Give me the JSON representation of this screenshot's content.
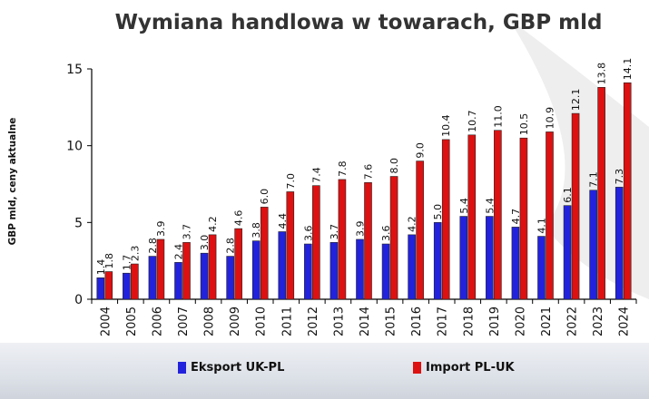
{
  "chart_data": {
    "type": "bar",
    "title": "Wymiana handlowa w towarach, GBP mld",
    "xlabel": "",
    "ylabel": "GBP mld, ceny aktualne",
    "categories": [
      "2004",
      "2005",
      "2006",
      "2007",
      "2008",
      "2009",
      "2010",
      "2011",
      "2012",
      "2013",
      "2014",
      "2015",
      "2016",
      "2017",
      "2018",
      "2019",
      "2020",
      "2021",
      "2022",
      "2023",
      "2024"
    ],
    "series": [
      {
        "name": "Eksport UK-PL",
        "color": "#2222dd",
        "values": [
          1.4,
          1.7,
          2.8,
          2.4,
          3.0,
          2.8,
          3.8,
          4.4,
          3.6,
          3.7,
          3.9,
          3.6,
          4.2,
          5.0,
          5.4,
          5.4,
          4.7,
          4.1,
          6.1,
          7.1,
          7.3
        ]
      },
      {
        "name": "Import PL-UK",
        "color": "#dd1111",
        "values": [
          1.8,
          2.3,
          3.9,
          3.7,
          4.2,
          4.6,
          6.0,
          7.0,
          7.4,
          7.8,
          7.6,
          8.0,
          9.0,
          10.4,
          10.7,
          11.0,
          10.5,
          10.9,
          12.1,
          13.8,
          14.1
        ]
      }
    ],
    "ylim": [
      0,
      15
    ],
    "yticks": [
      0,
      5,
      10,
      15
    ],
    "grid": false,
    "legend": "bottom"
  }
}
